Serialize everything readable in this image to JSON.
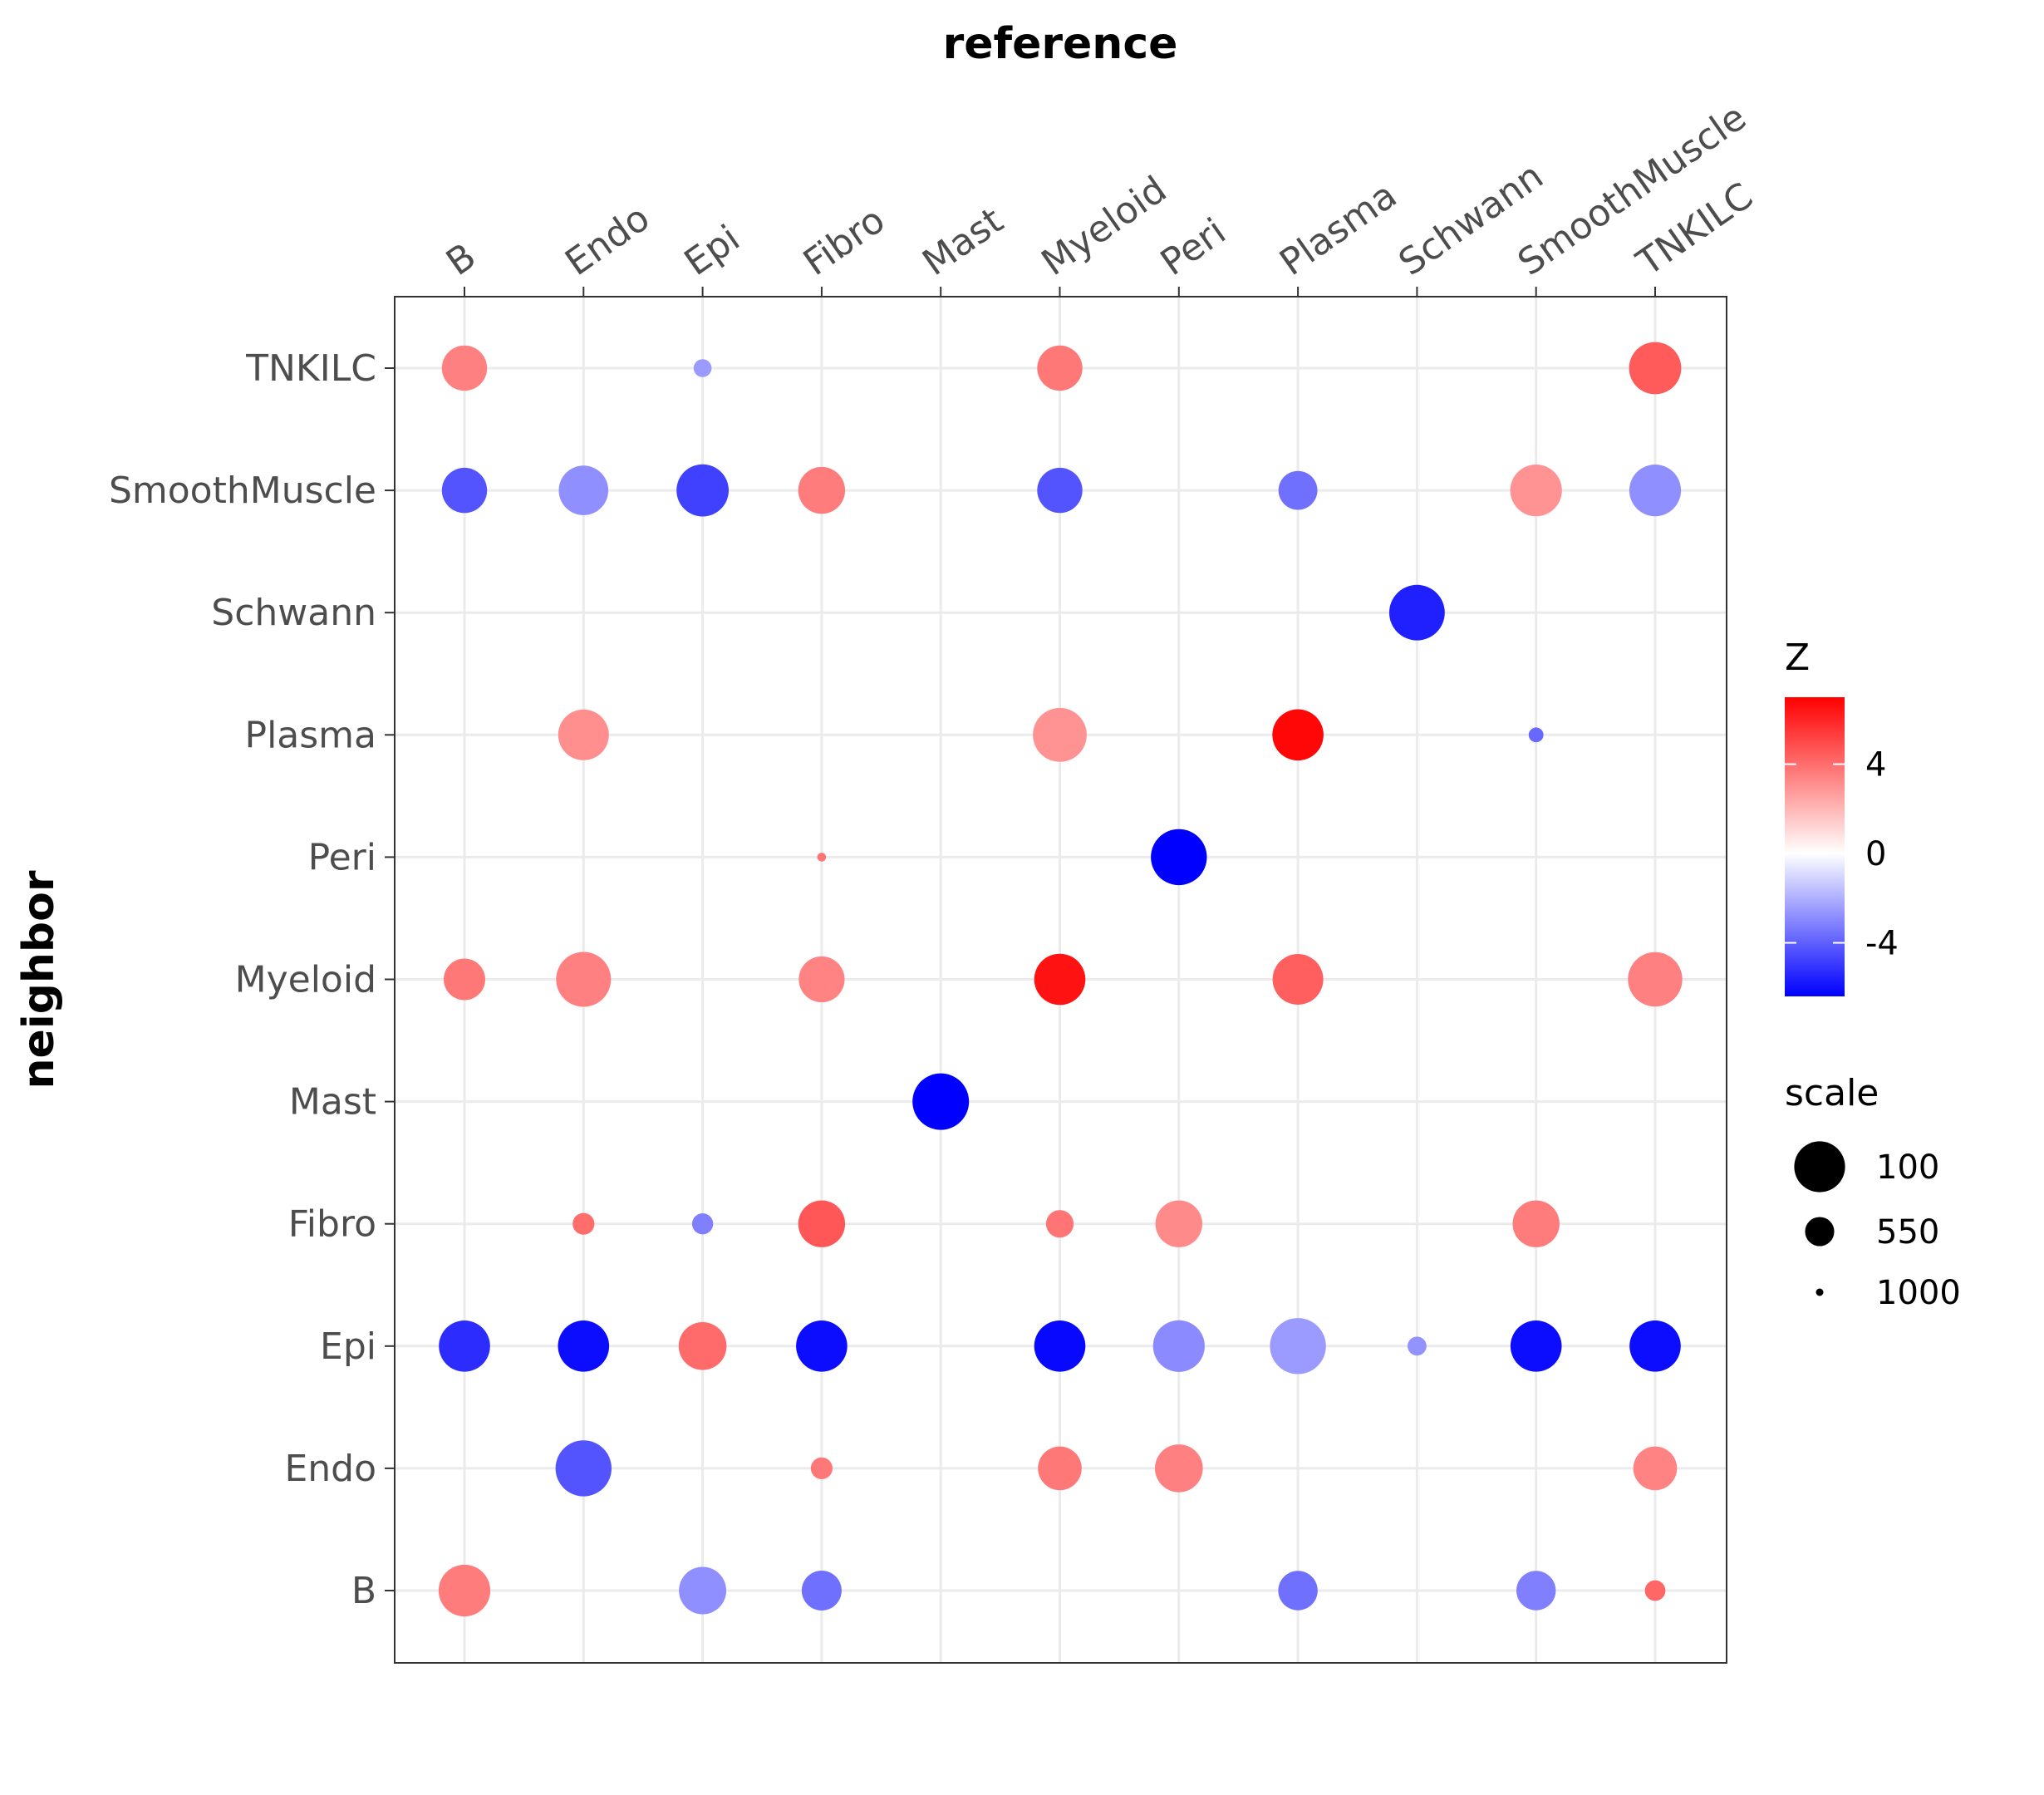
{
  "chart_data": {
    "type": "scatter",
    "title": "reference",
    "xlabel": "reference",
    "ylabel": "neighbor",
    "x_categories": [
      "B",
      "Endo",
      "Epi",
      "Fibro",
      "Mast",
      "Myeloid",
      "Peri",
      "Plasma",
      "Schwann",
      "SmoothMuscle",
      "TNKILC"
    ],
    "y_categories": [
      "B",
      "Endo",
      "Epi",
      "Fibro",
      "Mast",
      "Myeloid",
      "Peri",
      "Plasma",
      "Schwann",
      "SmoothMuscle",
      "TNKILC"
    ],
    "x_axis_position": "top",
    "grid": true,
    "color_legend": {
      "title": "Z",
      "ticks": [
        4,
        0,
        -4
      ],
      "range": [
        -6.4,
        7.0
      ],
      "colors": {
        "low": "#0000ff",
        "mid": "#ffffff",
        "high": "#ff0000"
      }
    },
    "size_legend": {
      "title": "scale",
      "entries": [
        {
          "label": "100",
          "value": 100
        },
        {
          "label": "550",
          "value": 550
        },
        {
          "label": "1000",
          "value": 1000
        }
      ],
      "note": "smaller scale value = larger point"
    },
    "legend_position": "right",
    "points": [
      {
        "reference": "B",
        "neighbor": "TNKILC",
        "z": 3.5,
        "scale": 310
      },
      {
        "reference": "Epi",
        "neighbor": "TNKILC",
        "z": -2.5,
        "scale": 820
      },
      {
        "reference": "Myeloid",
        "neighbor": "TNKILC",
        "z": 3.7,
        "scale": 310
      },
      {
        "reference": "TNKILC",
        "neighbor": "TNKILC",
        "z": 4.5,
        "scale": 180
      },
      {
        "reference": "B",
        "neighbor": "SmoothMuscle",
        "z": -4.3,
        "scale": 310
      },
      {
        "reference": "Endo",
        "neighbor": "SmoothMuscle",
        "z": -2.8,
        "scale": 230
      },
      {
        "reference": "Epi",
        "neighbor": "SmoothMuscle",
        "z": -4.8,
        "scale": 180
      },
      {
        "reference": "Fibro",
        "neighbor": "SmoothMuscle",
        "z": 3.6,
        "scale": 280
      },
      {
        "reference": "Myeloid",
        "neighbor": "SmoothMuscle",
        "z": -4.3,
        "scale": 310
      },
      {
        "reference": "Plasma",
        "neighbor": "SmoothMuscle",
        "z": -3.6,
        "scale": 430
      },
      {
        "reference": "SmoothMuscle",
        "neighbor": "SmoothMuscle",
        "z": 3.0,
        "scale": 190
      },
      {
        "reference": "TNKILC",
        "neighbor": "SmoothMuscle",
        "z": -2.8,
        "scale": 190
      },
      {
        "reference": "Schwann",
        "neighbor": "Schwann",
        "z": -5.6,
        "scale": 120
      },
      {
        "reference": "Endo",
        "neighbor": "Plasma",
        "z": 3.1,
        "scale": 210
      },
      {
        "reference": "Myeloid",
        "neighbor": "Plasma",
        "z": 3.0,
        "scale": 150
      },
      {
        "reference": "Plasma",
        "neighbor": "Plasma",
        "z": 6.8,
        "scale": 200
      },
      {
        "reference": "SmoothMuscle",
        "neighbor": "Plasma",
        "z": -3.8,
        "scale": 880
      },
      {
        "reference": "Fibro",
        "neighbor": "Peri",
        "z": 3.8,
        "scale": 990
      },
      {
        "reference": "Peri",
        "neighbor": "Peri",
        "z": -6.4,
        "scale": 110
      },
      {
        "reference": "B",
        "neighbor": "Myeloid",
        "z": 3.7,
        "scale": 380
      },
      {
        "reference": "Endo",
        "neighbor": "Myeloid",
        "z": 3.5,
        "scale": 130
      },
      {
        "reference": "Fibro",
        "neighbor": "Myeloid",
        "z": 3.4,
        "scale": 300
      },
      {
        "reference": "Myeloid",
        "neighbor": "Myeloid",
        "z": 6.5,
        "scale": 200
      },
      {
        "reference": "Plasma",
        "neighbor": "Myeloid",
        "z": 4.4,
        "scale": 210
      },
      {
        "reference": "TNKILC",
        "neighbor": "Myeloid",
        "z": 3.5,
        "scale": 140
      },
      {
        "reference": "Mast",
        "neighbor": "Mast",
        "z": -6.4,
        "scale": 100
      },
      {
        "reference": "Endo",
        "neighbor": "Fibro",
        "z": 4.0,
        "scale": 750
      },
      {
        "reference": "Epi",
        "neighbor": "Fibro",
        "z": -3.2,
        "scale": 760
      },
      {
        "reference": "Fibro",
        "neighbor": "Fibro",
        "z": 4.6,
        "scale": 280
      },
      {
        "reference": "Myeloid",
        "neighbor": "Fibro",
        "z": 3.8,
        "scale": 640
      },
      {
        "reference": "Peri",
        "neighbor": "Fibro",
        "z": 3.2,
        "scale": 280
      },
      {
        "reference": "SmoothMuscle",
        "neighbor": "Fibro",
        "z": 3.6,
        "scale": 280
      },
      {
        "reference": "B",
        "neighbor": "Epi",
        "z": -5.3,
        "scale": 200
      },
      {
        "reference": "Endo",
        "neighbor": "Epi",
        "z": -6.1,
        "scale": 200
      },
      {
        "reference": "Epi",
        "neighbor": "Epi",
        "z": 4.1,
        "scale": 260
      },
      {
        "reference": "Fibro",
        "neighbor": "Epi",
        "z": -6.1,
        "scale": 200
      },
      {
        "reference": "Myeloid",
        "neighbor": "Epi",
        "z": -6.2,
        "scale": 200
      },
      {
        "reference": "Peri",
        "neighbor": "Epi",
        "z": -2.9,
        "scale": 190
      },
      {
        "reference": "Plasma",
        "neighbor": "Epi",
        "z": -2.5,
        "scale": 110
      },
      {
        "reference": "Schwann",
        "neighbor": "Epi",
        "z": -2.7,
        "scale": 800
      },
      {
        "reference": "SmoothMuscle",
        "neighbor": "Epi",
        "z": -6.1,
        "scale": 200
      },
      {
        "reference": "TNKILC",
        "neighbor": "Epi",
        "z": -6.1,
        "scale": 200
      },
      {
        "reference": "Endo",
        "neighbor": "Endo",
        "z": -4.3,
        "scale": 110
      },
      {
        "reference": "Fibro",
        "neighbor": "Endo",
        "z": 3.7,
        "scale": 750
      },
      {
        "reference": "Myeloid",
        "neighbor": "Endo",
        "z": 3.7,
        "scale": 340
      },
      {
        "reference": "Peri",
        "neighbor": "Endo",
        "z": 3.5,
        "scale": 260
      },
      {
        "reference": "TNKILC",
        "neighbor": "Endo",
        "z": 3.4,
        "scale": 340
      },
      {
        "reference": "B",
        "neighbor": "B",
        "z": 3.6,
        "scale": 190
      },
      {
        "reference": "Epi",
        "neighbor": "B",
        "z": -2.8,
        "scale": 270
      },
      {
        "reference": "Fibro",
        "neighbor": "B",
        "z": -3.6,
        "scale": 410
      },
      {
        "reference": "Plasma",
        "neighbor": "B",
        "z": -3.6,
        "scale": 420
      },
      {
        "reference": "SmoothMuscle",
        "neighbor": "B",
        "z": -3.2,
        "scale": 420
      },
      {
        "reference": "TNKILC",
        "neighbor": "B",
        "z": 4.2,
        "scale": 770
      }
    ]
  }
}
